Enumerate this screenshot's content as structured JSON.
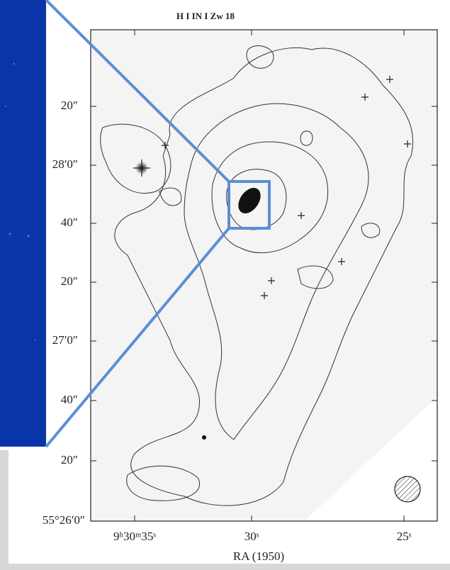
{
  "title": "H I IN I Zw 18",
  "x_axis": {
    "label": "RA (1950)",
    "ticks": [
      "9ʰ30ᵐ35ˢ",
      "30ˢ",
      "25ˢ"
    ]
  },
  "y_axis": {
    "ticks": [
      "20″",
      "28′0″",
      "40″",
      "20″",
      "27′0″",
      "40″",
      "20″",
      "55°26′0″"
    ]
  }
}
